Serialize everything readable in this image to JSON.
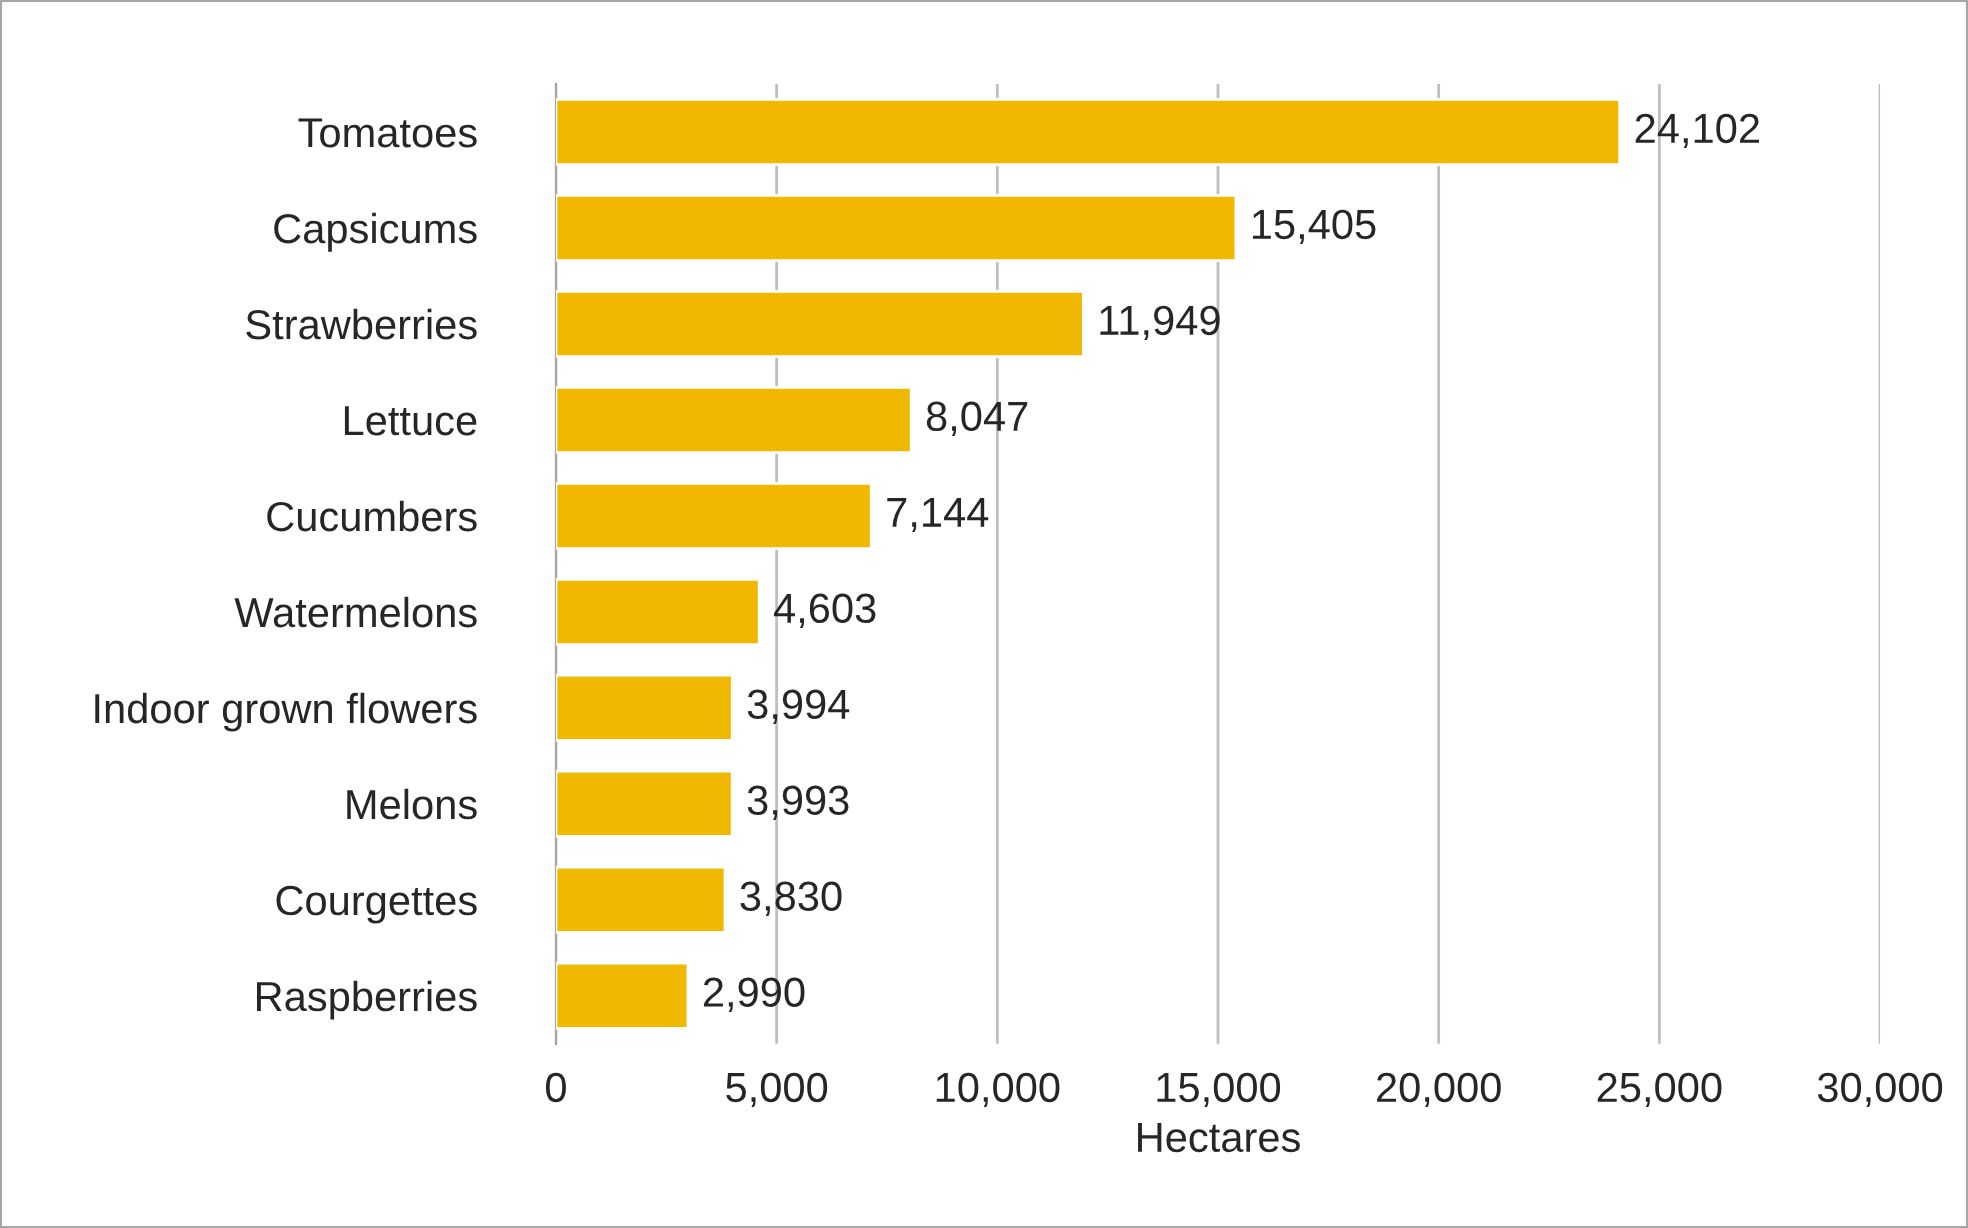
{
  "chart_data": {
    "type": "bar",
    "orientation": "horizontal",
    "xlabel": "Hectares",
    "categories": [
      "Tomatoes",
      "Capsicums",
      "Strawberries",
      "Lettuce",
      "Cucumbers",
      "Watermelons",
      "Indoor grown flowers",
      "Melons",
      "Courgettes",
      "Raspberries"
    ],
    "values": [
      24102,
      15405,
      11949,
      8047,
      7144,
      4603,
      3994,
      3993,
      3830,
      2990
    ],
    "value_labels": [
      "24,102",
      "15,405",
      "11,949",
      "8,047",
      "7,144",
      "4,603",
      "3,994",
      "3,993",
      "3,830",
      "2,990"
    ],
    "color": "#f0b800",
    "xlim": [
      0,
      30000
    ],
    "xticks": [
      0,
      {
        "value": 5000,
        "label": "5,000"
      },
      {
        "value": 10000,
        "label": "10,000"
      },
      {
        "value": 15000,
        "label": "15,000"
      },
      {
        "value": 20000,
        "label": "20,000"
      },
      {
        "value": 25000,
        "label": "25,000"
      },
      {
        "value": 30000,
        "label": "30,000"
      }
    ],
    "grid": "x",
    "legend": false
  }
}
